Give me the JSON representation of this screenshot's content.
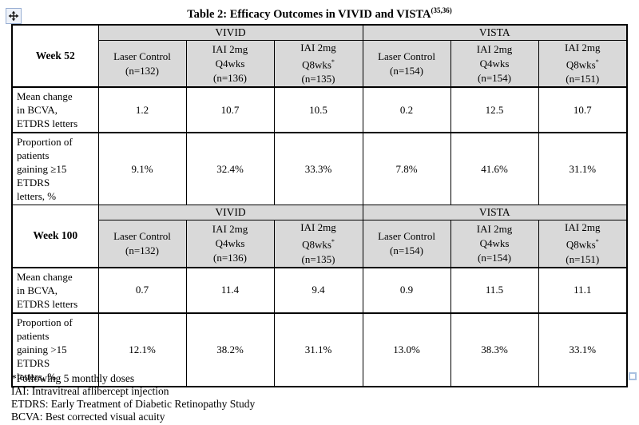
{
  "title": {
    "text": "Table 2: Efficacy Outcomes in VIVID and VISTA",
    "superscript": "(35,36)"
  },
  "colors": {
    "header_bg": "#d9d9d9",
    "table_border": "#000000",
    "handle_border": "#9ab0d4"
  },
  "icons": {
    "move_handle": "table-move-icon",
    "resize_handle": "table-resize-icon"
  },
  "table": {
    "studies": [
      "VIVID",
      "VISTA"
    ],
    "sections": [
      {
        "week_label": "Week 52",
        "columns": [
          {
            "lines": [
              "Laser Control",
              "(n=132)"
            ]
          },
          {
            "lines": [
              "IAI 2mg",
              "Q4wks",
              "(n=136)"
            ]
          },
          {
            "lines": [
              "IAI 2mg",
              "Q8wks*",
              "(n=135)"
            ]
          },
          {
            "lines": [
              "Laser Control",
              "(n=154)"
            ]
          },
          {
            "lines": [
              "IAI 2mg",
              "Q4wks",
              "(n=154)"
            ]
          },
          {
            "lines": [
              "IAI 2mg",
              "Q8wks*",
              "(n=151)"
            ]
          }
        ],
        "rows": [
          {
            "label_lines": [
              "Mean change",
              "in BCVA,",
              "ETDRS letters"
            ],
            "values": [
              "1.2",
              "10.7",
              "10.5",
              "0.2",
              "12.5",
              "10.7"
            ]
          },
          {
            "label_lines": [
              "Proportion of",
              "patients",
              "gaining ≥15",
              "ETDRS",
              "letters, %"
            ],
            "values": [
              "9.1%",
              "32.4%",
              "33.3%",
              "7.8%",
              "41.6%",
              "31.1%"
            ]
          }
        ]
      },
      {
        "week_label": "Week 100",
        "columns": [
          {
            "lines": [
              "Laser Control",
              "(n=132)"
            ]
          },
          {
            "lines": [
              "IAI 2mg",
              "Q4wks",
              "(n=136)"
            ]
          },
          {
            "lines": [
              "IAI 2mg",
              "Q8wks*",
              "(n=135)"
            ]
          },
          {
            "lines": [
              "Laser Control",
              "(n=154)"
            ]
          },
          {
            "lines": [
              "IAI 2mg",
              "Q4wks",
              "(n=154)"
            ]
          },
          {
            "lines": [
              "IAI 2mg",
              "Q8wks*",
              "(n=151)"
            ]
          }
        ],
        "rows": [
          {
            "label_lines": [
              "Mean change",
              "in BCVA,",
              "ETDRS letters"
            ],
            "values": [
              "0.7",
              "11.4",
              "9.4",
              "0.9",
              "11.5",
              "11.1"
            ]
          },
          {
            "label_lines": [
              "Proportion of",
              "patients",
              "gaining >15",
              "ETDRS",
              "letters, %"
            ],
            "values": [
              "12.1%",
              "38.2%",
              "31.1%",
              "13.0%",
              "38.3%",
              "33.1%"
            ]
          }
        ]
      }
    ]
  },
  "footnotes": [
    "*Following 5 monthly doses",
    "IAI: Intravitreal aflibercept injection",
    "ETDRS: Early Treatment of Diabetic Retinopathy Study",
    "BCVA: Best corrected visual acuity"
  ]
}
